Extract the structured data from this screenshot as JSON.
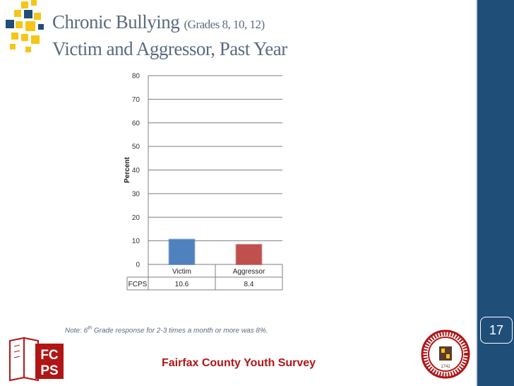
{
  "slide": {
    "title_main": "Chronic Bullying",
    "title_grades": "(Grades 8, 10, 12)",
    "title_line2": "Victim and Aggressor, Past Year",
    "page_number": "17",
    "note_prefix": "Note: 6",
    "note_sup": "th",
    "note_suffix": " Grade response for 2-3 times a month or more was 8%.",
    "footer_title": "Fairfax County Youth Survey",
    "fcps_logo_text": [
      "FC",
      "PS"
    ],
    "seal_year": "1742"
  },
  "colors": {
    "band": "#1f4e79",
    "title": "#5b6b7f",
    "victim": "#4f81bd",
    "aggressor": "#c0504d",
    "footer": "#b01616"
  },
  "chart_data": {
    "type": "bar",
    "categories": [
      "Victim",
      "Aggressor"
    ],
    "series": [
      {
        "name": "FCPS",
        "values": [
          10.6,
          8.4
        ]
      }
    ],
    "value_labels": [
      "10.6",
      "8.4"
    ],
    "ylabel": "Percent",
    "ylim": [
      0,
      80
    ],
    "yticks": [
      0,
      10,
      20,
      30,
      40,
      50,
      60,
      70,
      80
    ],
    "grid": true,
    "data_table": true,
    "bar_colors": [
      "#4f81bd",
      "#c0504d"
    ]
  }
}
